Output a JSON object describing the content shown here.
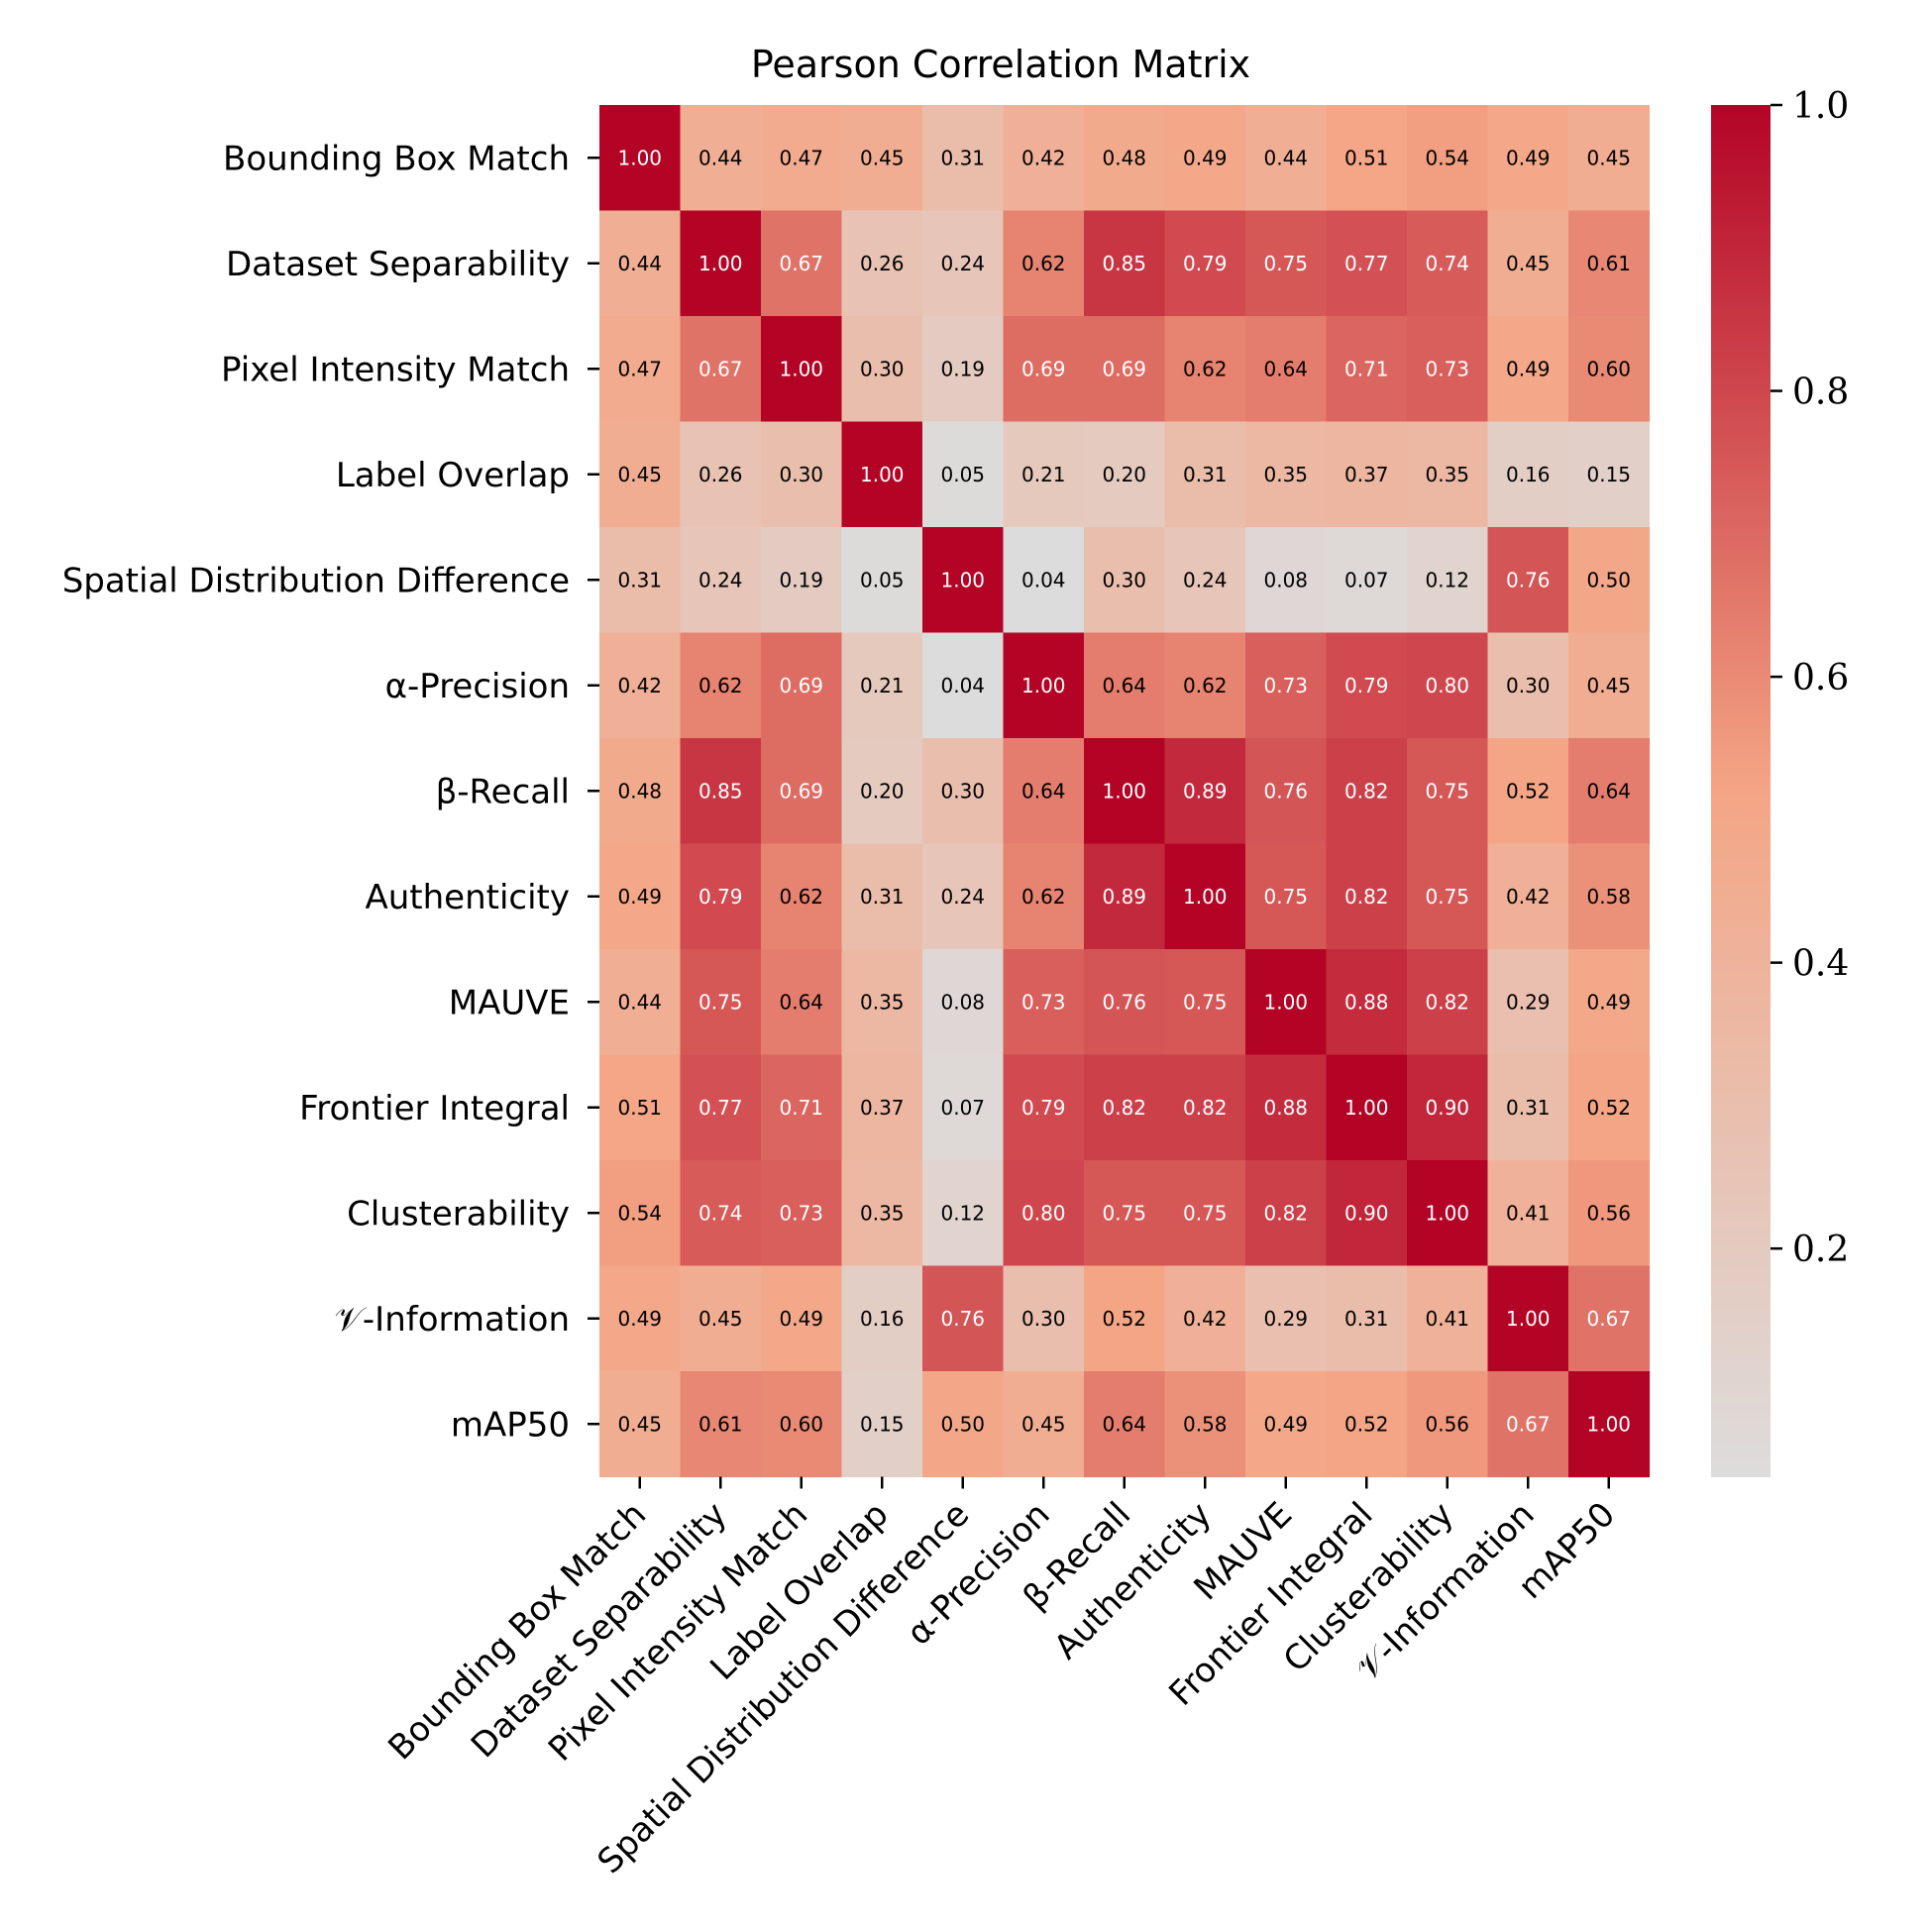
{
  "chart_data": {
    "type": "heatmap",
    "title": "Pearson Correlation Matrix",
    "labels": [
      "Bounding Box Match",
      "Dataset Separability",
      "Pixel Intensity Match",
      "Label Overlap",
      "Spatial Distribution Difference",
      "α-Precision",
      "β-Recall",
      "Authenticity",
      "MAUVE",
      "Frontier Integral",
      "Clusterability",
      "𝒱-Information",
      "mAP50"
    ],
    "values": [
      [
        1.0,
        0.44,
        0.47,
        0.45,
        0.31,
        0.42,
        0.48,
        0.49,
        0.44,
        0.51,
        0.54,
        0.49,
        0.45
      ],
      [
        0.44,
        1.0,
        0.67,
        0.26,
        0.24,
        0.62,
        0.85,
        0.79,
        0.75,
        0.77,
        0.74,
        0.45,
        0.61
      ],
      [
        0.47,
        0.67,
        1.0,
        0.3,
        0.19,
        0.69,
        0.69,
        0.62,
        0.64,
        0.71,
        0.73,
        0.49,
        0.6
      ],
      [
        0.45,
        0.26,
        0.3,
        1.0,
        0.05,
        0.21,
        0.2,
        0.31,
        0.35,
        0.37,
        0.35,
        0.16,
        0.15
      ],
      [
        0.31,
        0.24,
        0.19,
        0.05,
        1.0,
        0.04,
        0.3,
        0.24,
        0.08,
        0.07,
        0.12,
        0.76,
        0.5
      ],
      [
        0.42,
        0.62,
        0.69,
        0.21,
        0.04,
        1.0,
        0.64,
        0.62,
        0.73,
        0.79,
        0.8,
        0.3,
        0.45
      ],
      [
        0.48,
        0.85,
        0.69,
        0.2,
        0.3,
        0.64,
        1.0,
        0.89,
        0.76,
        0.82,
        0.75,
        0.52,
        0.64
      ],
      [
        0.49,
        0.79,
        0.62,
        0.31,
        0.24,
        0.62,
        0.89,
        1.0,
        0.75,
        0.82,
        0.75,
        0.42,
        0.58
      ],
      [
        0.44,
        0.75,
        0.64,
        0.35,
        0.08,
        0.73,
        0.76,
        0.75,
        1.0,
        0.88,
        0.82,
        0.29,
        0.49
      ],
      [
        0.51,
        0.77,
        0.71,
        0.37,
        0.07,
        0.79,
        0.82,
        0.82,
        0.88,
        1.0,
        0.9,
        0.31,
        0.52
      ],
      [
        0.54,
        0.74,
        0.73,
        0.35,
        0.12,
        0.8,
        0.75,
        0.75,
        0.82,
        0.9,
        1.0,
        0.41,
        0.56
      ],
      [
        0.49,
        0.45,
        0.49,
        0.16,
        0.76,
        0.3,
        0.52,
        0.42,
        0.29,
        0.31,
        0.41,
        1.0,
        0.67
      ],
      [
        0.45,
        0.61,
        0.6,
        0.15,
        0.5,
        0.45,
        0.64,
        0.58,
        0.49,
        0.52,
        0.56,
        0.67,
        1.0
      ]
    ],
    "colorbar": {
      "range": [
        0.04,
        1.0
      ],
      "ticks": [
        0.2,
        0.4,
        0.6,
        0.8,
        1.0
      ],
      "tick_labels": [
        "0.2",
        "0.4",
        "0.6",
        "0.8",
        "1.0"
      ]
    },
    "colormap": {
      "low": "#dddcdc",
      "mid": "#f4a585",
      "high": "#b40426"
    },
    "value_format": "2 decimals",
    "grid": false
  }
}
